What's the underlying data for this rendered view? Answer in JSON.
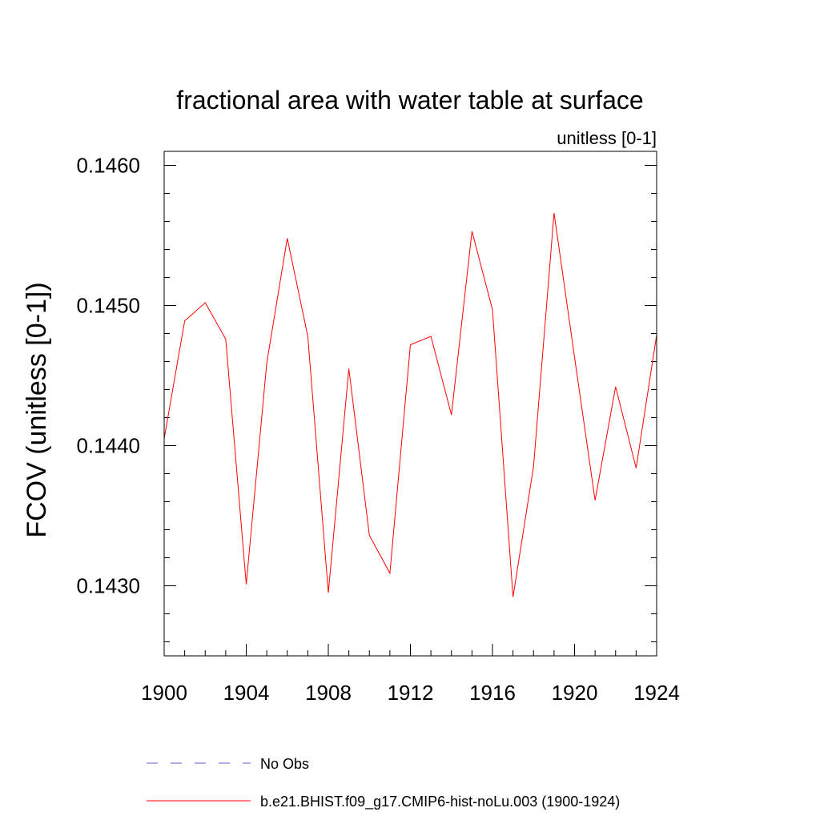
{
  "chart_data": {
    "type": "line",
    "title": "fractional area with water table at surface",
    "subtitle": "unitless [0-1]",
    "xlabel": "",
    "ylabel": "FCOV  (unitless [0-1])",
    "xlim": [
      1900,
      1924
    ],
    "ylim": [
      0.1425,
      0.1461
    ],
    "x_ticks": [
      1900,
      1904,
      1908,
      1912,
      1916,
      1920,
      1924
    ],
    "y_ticks": [
      0.143,
      0.144,
      0.145,
      0.146
    ],
    "y_tick_labels": [
      "0.1430",
      "0.1440",
      "0.1450",
      "0.1460"
    ],
    "x": [
      1900,
      1901,
      1902,
      1903,
      1904,
      1905,
      1906,
      1907,
      1908,
      1909,
      1910,
      1911,
      1912,
      1913,
      1914,
      1915,
      1916,
      1917,
      1918,
      1919,
      1920,
      1921,
      1922,
      1923,
      1924
    ],
    "series": [
      {
        "name": "b.e21.BHIST.f09_g17.CMIP6-hist-noLu.003 (1900-1924)",
        "color": "#ff0000",
        "values": [
          0.14405,
          0.14489,
          0.14502,
          0.14476,
          0.14301,
          0.14459,
          0.14548,
          0.14478,
          0.14295,
          0.14455,
          0.14336,
          0.14309,
          0.14472,
          0.14478,
          0.14422,
          0.14553,
          0.14497,
          0.14292,
          0.14385,
          0.14566,
          0.14463,
          0.14361,
          0.14442,
          0.14384,
          0.14479
        ]
      }
    ],
    "legend": {
      "placement": "bottom",
      "entries": [
        {
          "label": "No Obs",
          "color": "#6a5acd",
          "style": "dashed"
        },
        {
          "label": "b.e21.BHIST.f09_g17.CMIP6-hist-noLu.003 (1900-1924)",
          "color": "#ff0000",
          "style": "solid"
        }
      ]
    }
  }
}
